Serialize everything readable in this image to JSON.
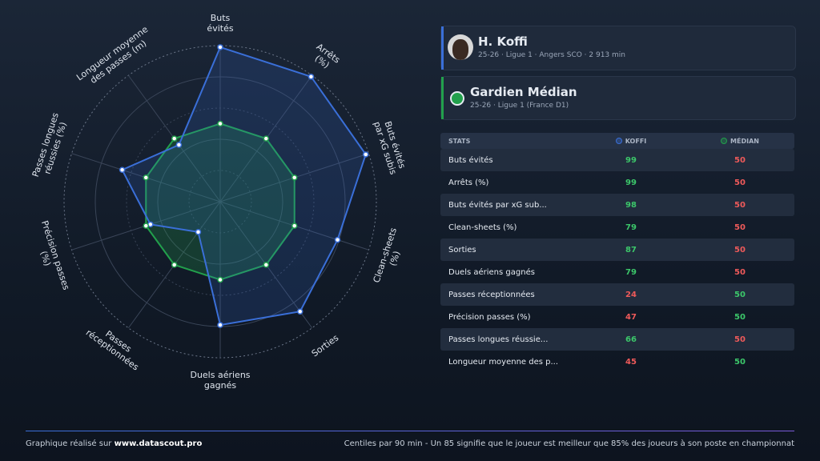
{
  "chart_data": {
    "type": "radar",
    "categories": [
      "Buts\névités",
      "Arrêts\n(%)",
      "Buts évités\npar xG subis",
      "Clean-sheets\n(%)",
      "Sorties",
      "Duels aériens\ngagnés",
      "Passes\nréceptionnées",
      "Précision passes\n(%)",
      "Passes longues\nréussies (%)",
      "Longueur moyenne\ndes passes (m)"
    ],
    "series": [
      {
        "name": "KOFFI",
        "color": "#3a6fd8",
        "values": [
          99,
          99,
          98,
          79,
          87,
          79,
          24,
          47,
          66,
          45
        ]
      },
      {
        "name": "MÉDIAN",
        "color": "#22a04c",
        "values": [
          50,
          50,
          50,
          50,
          50,
          50,
          50,
          50,
          50,
          50
        ]
      }
    ],
    "rlim": [
      0,
      100
    ],
    "rticks": [
      20,
      40,
      60,
      80,
      100
    ],
    "grid": true
  },
  "player": {
    "name": "H. Koffi",
    "meta": "25-26 · Ligue 1 · Angers SCO · 2 913 min"
  },
  "reference": {
    "name": "Gardien Médian",
    "meta": "25-26 · Ligue 1 (France D1)"
  },
  "table": {
    "header": "STATS",
    "rows": [
      "Buts évités",
      "Arrêts (%)",
      "Buts évités par xG sub...",
      "Clean-sheets (%)",
      "Sorties",
      "Duels aériens gagnés",
      "Passes réceptionnées",
      "Précision passes (%)",
      "Passes longues réussie...",
      "Longueur moyenne des p..."
    ]
  },
  "footer": {
    "left": "Graphique réalisé sur",
    "site": "www.datascout.pro",
    "right": "Centiles par 90 min - Un 85 signifie que le joueur est meilleur que 85% des joueurs à son poste en championnat"
  }
}
